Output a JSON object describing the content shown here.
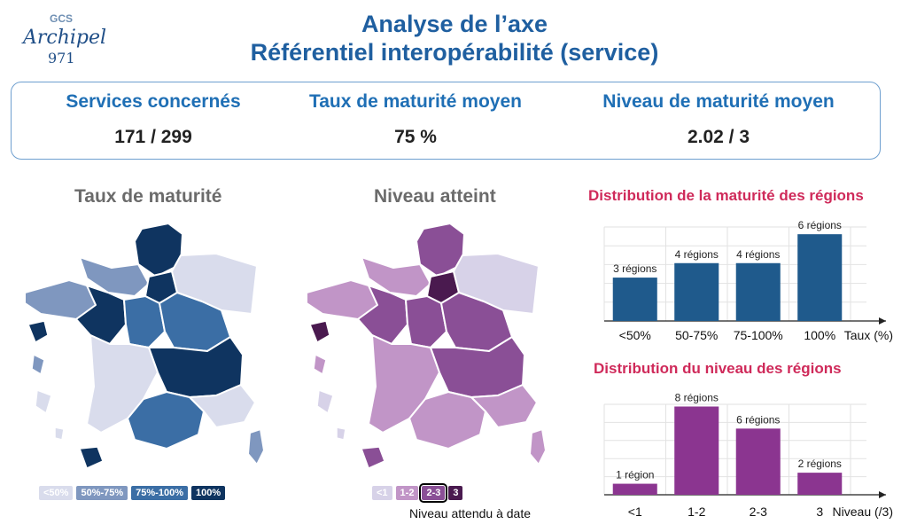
{
  "logo": {
    "gcs": "GCS",
    "name": "Archipel",
    "number": "971"
  },
  "title_line1": "Analyse de l’axe",
  "title_line2": "Référentiel interopérabilité (service)",
  "kpis": [
    {
      "label": "Services concernés",
      "value": "171 / 299"
    },
    {
      "label": "Taux de maturité moyen",
      "value": "75 %"
    },
    {
      "label": "Niveau de maturité moyen",
      "value": "2.02 / 3"
    }
  ],
  "map1": {
    "title": "Taux de maturité",
    "legend": [
      {
        "label": "<50%",
        "color": "#d9dcec"
      },
      {
        "label": "50%-75%",
        "color": "#7f97bf"
      },
      {
        "label": "75%-100%",
        "color": "#3b6ea5"
      },
      {
        "label": "100%",
        "color": "#0f3460"
      }
    ]
  },
  "map2": {
    "title": "Niveau atteint",
    "legend": [
      {
        "label": "<1",
        "color": "#d7d2e8"
      },
      {
        "label": "1-2",
        "color": "#c195c7"
      },
      {
        "label": "2-3",
        "color": "#8a4f96",
        "selected": true
      },
      {
        "label": "3",
        "color": "#4a1a4f"
      }
    ],
    "note": "Niveau attendu à date"
  },
  "chart_data": [
    {
      "type": "bar",
      "title": "Distribution de la maturité des régions",
      "categories": [
        "<50%",
        "50-75%",
        "75-100%",
        "100%"
      ],
      "values": [
        3,
        4,
        4,
        6
      ],
      "data_labels": [
        "3 régions",
        "4 régions",
        "4 régions",
        "6 régions"
      ],
      "xlabel": "Taux (%)",
      "ylim": [
        0,
        6.5
      ],
      "color": "#1f5a8c",
      "grid": true
    },
    {
      "type": "bar",
      "title": "Distribution du niveau des régions",
      "categories": [
        "<1",
        "1-2",
        "2-3",
        "3"
      ],
      "values": [
        1,
        8,
        6,
        2
      ],
      "data_labels": [
        "1 région",
        "8 régions",
        "6 régions",
        "2 régions"
      ],
      "xlabel": "Niveau (/3)",
      "ylim": [
        0,
        8.2
      ],
      "color": "#8b3590",
      "grid": true
    }
  ]
}
